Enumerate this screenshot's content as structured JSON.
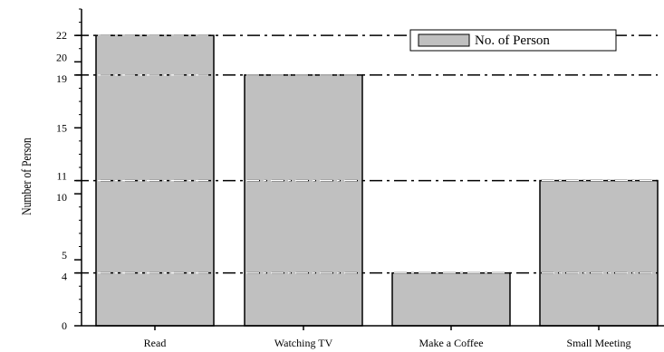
{
  "chart_data": {
    "type": "bar",
    "categories": [
      "Read",
      "Watching TV",
      "Make a Coffee",
      "Small Meeting"
    ],
    "series": [
      {
        "name": "No. of Person",
        "values": [
          22,
          19,
          4,
          11
        ],
        "color": "#c0c0c0"
      }
    ],
    "ylabel": "Number of Person",
    "xlabel": "",
    "ylim": [
      0,
      24
    ],
    "yticks": [
      0,
      4,
      5,
      10,
      11,
      15,
      19,
      20,
      22
    ],
    "reference_lines": [
      22,
      19,
      11,
      4
    ],
    "legend": {
      "position": "top-right",
      "label": "No. of Person"
    }
  }
}
